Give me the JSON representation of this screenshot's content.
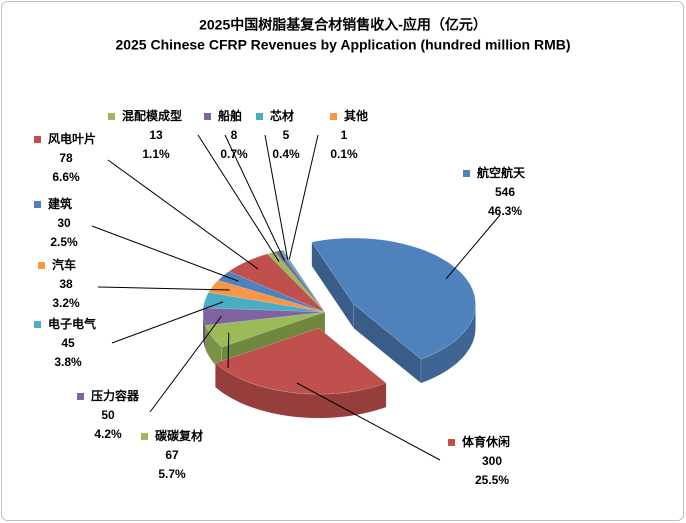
{
  "chart_data": {
    "type": "pie3d",
    "title": "2025中国树脂基复合材销售收入-应用（亿元）",
    "subtitle": "2025 Chinese CFRP Revenues by Application (hundred million RMB)",
    "categories": [
      "航空航天",
      "体育休闲",
      "碳碳复材",
      "压力容器",
      "电子电气",
      "汽车",
      "建筑",
      "风电叶片",
      "混配模成型",
      "船舶",
      "芯材",
      "其他"
    ],
    "values": [
      546,
      300,
      67,
      50,
      45,
      38,
      30,
      78,
      13,
      8,
      5,
      1
    ],
    "percent_labels": [
      "46.3%",
      "25.5%",
      "5.7%",
      "4.2%",
      "3.8%",
      "3.2%",
      "2.5%",
      "6.6%",
      "1.1%",
      "0.7%",
      "0.4%",
      "0.1%"
    ],
    "colors": [
      "#4f81bd",
      "#c0504d",
      "#9bbb59",
      "#8064a2",
      "#4bacc6",
      "#f79646",
      "#4f81bd",
      "#c0504d",
      "#9bbb59",
      "#8064a2",
      "#4bacc6",
      "#f79646"
    ]
  }
}
